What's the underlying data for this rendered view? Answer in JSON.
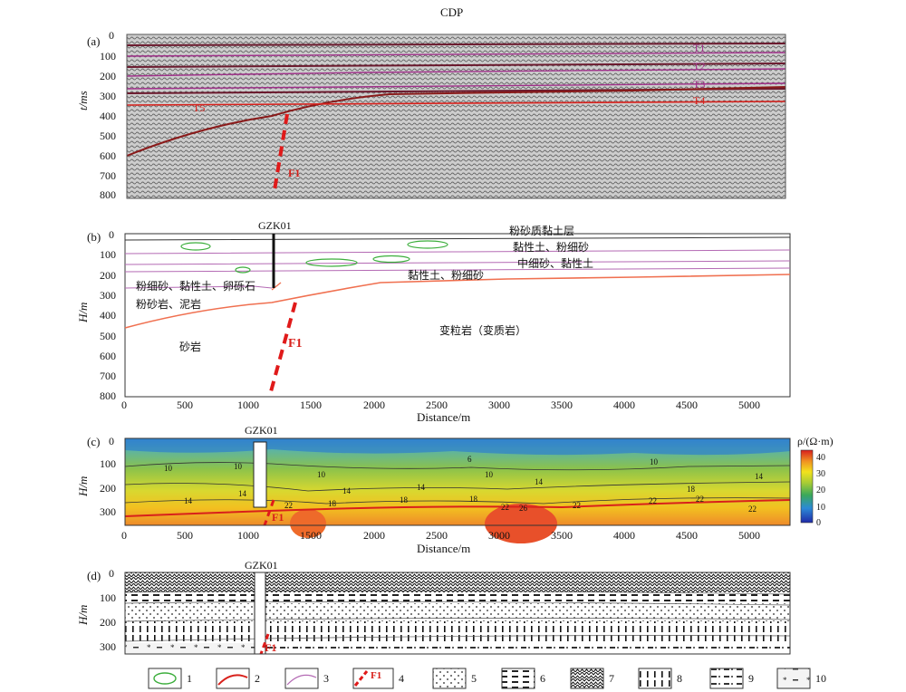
{
  "figure": {
    "top_title": "CDP",
    "panels": {
      "a": {
        "label": "(a)",
        "ylabel": "t/ms",
        "yticks": [
          "0",
          "100",
          "200",
          "300",
          "400",
          "500",
          "600",
          "700",
          "800"
        ],
        "horizons": [
          "T1",
          "T2",
          "T3",
          "T4",
          "T5"
        ],
        "fault": "F1",
        "colors": {
          "horizon_purple": "#a0308a",
          "horizon_red": "#d8201b"
        }
      },
      "b": {
        "label": "(b)",
        "ylabel": "H/m",
        "yticks": [
          "0",
          "100",
          "200",
          "300",
          "400",
          "500",
          "600",
          "700",
          "800"
        ],
        "xticks": [
          "0",
          "500",
          "1000",
          "1500",
          "2000",
          "2500",
          "3000",
          "3500",
          "4000",
          "4500",
          "5000"
        ],
        "xlabel": "Distance/m",
        "borehole": "GZK01",
        "fault": "F1",
        "units": [
          "粉砂质黏土层",
          "黏性土、粉细砂",
          "中细砂、黏性土",
          "黏性土、粉细砂",
          "粉细砂、黏性土、卵砾石",
          "粉砂岩、泥岩",
          "砂岩",
          "变粒岩（变质岩）"
        ]
      },
      "c": {
        "label": "(c)",
        "ylabel": "H/m",
        "yticks": [
          "0",
          "100",
          "200",
          "300"
        ],
        "xticks": [
          "0",
          "500",
          "1000",
          "1500",
          "2000",
          "2500",
          "3000",
          "3500",
          "4000",
          "4500",
          "5000"
        ],
        "xlabel": "Distance/m",
        "borehole": "GZK01",
        "fault": "F1",
        "contour_labels": [
          "10",
          "10",
          "14",
          "14",
          "6",
          "10",
          "14",
          "14",
          "10",
          "14",
          "10",
          "14",
          "18",
          "18",
          "18",
          "18",
          "22",
          "22",
          "22",
          "26",
          "22",
          "22",
          "22"
        ],
        "colorbar": {
          "title": "ρ/(Ω·m)",
          "ticks": [
            "40",
            "30",
            "20",
            "10",
            "0"
          ]
        }
      },
      "d": {
        "label": "(d)",
        "ylabel": "H/m",
        "yticks": [
          "0",
          "100",
          "200",
          "300"
        ],
        "borehole": "GZK01",
        "fault": "F1"
      }
    },
    "legend": [
      "1",
      "2",
      "3",
      "4",
      "5",
      "6",
      "7",
      "8",
      "9",
      "10"
    ],
    "legend_fault_label": "F1"
  }
}
